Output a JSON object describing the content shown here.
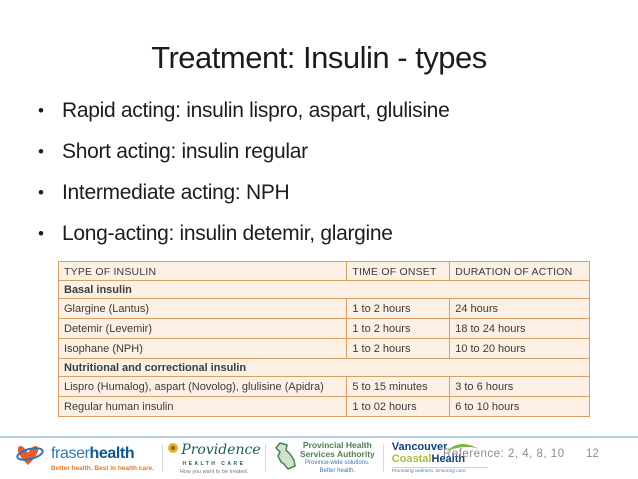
{
  "slide": {
    "title": "Treatment: Insulin - types",
    "bullets": [
      "Rapid acting: insulin lispro, aspart, glulisine",
      "Short acting: insulin regular",
      "Intermediate acting: NPH",
      "Long-acting: insulin detemir, glargine"
    ],
    "reference": "Reference: 2, 4, 8, 10",
    "page_number": "12"
  },
  "table": {
    "headers": [
      "TYPE OF INSULIN",
      "TIME OF ONSET",
      "DURATION OF ACTION"
    ],
    "sections": [
      {
        "label": "Basal insulin",
        "rows": [
          [
            "Glargine (Lantus)",
            "1 to 2 hours",
            "24 hours"
          ],
          [
            "Detemir (Levemir)",
            "1 to 2 hours",
            "18 to 24 hours"
          ],
          [
            "Isophane (NPH)",
            "1 to 2 hours",
            "10 to 20 hours"
          ]
        ]
      },
      {
        "label": "Nutritional and correctional insulin",
        "rows": [
          [
            "Lispro (Humalog), aspart (Novolog), glulisine (Apidra)",
            "5 to 15 minutes",
            "3 to 6 hours"
          ],
          [
            "Regular human insulin",
            "1 to 02 hours",
            "6 to 10 hours"
          ]
        ]
      }
    ]
  },
  "footer": {
    "fraser": {
      "word1": "fraser",
      "word2": "health",
      "tagline": "Better health. Best in health care."
    },
    "providence": {
      "script": "Providence",
      "caps": "HEALTH CARE",
      "tagline": "How you want to be treated."
    },
    "phsa": {
      "line1": "Provincial Health",
      "line2": "Services Authority",
      "tagline1": "Province-wide solutions.",
      "tagline2": "Better health."
    },
    "vch": {
      "line1": "Vancouver",
      "coastal": "Coastal",
      "health": "Health",
      "tagline": "Promoting wellness. Ensuring care."
    }
  },
  "colors": {
    "table_background": "#fcefe3",
    "table_border": "#d99f66",
    "divider_blue": "#b5cedf",
    "fraser_orange": "#e87722",
    "fraser_blue": "#2a79b8",
    "providence_teal": "#1d5c54",
    "phsa_green": "#4e7f52",
    "vch_navy": "#12407c",
    "vch_green": "#a9bf3a",
    "text_black": "#1c1c1c",
    "reference_gray": "#8c8c8c"
  }
}
